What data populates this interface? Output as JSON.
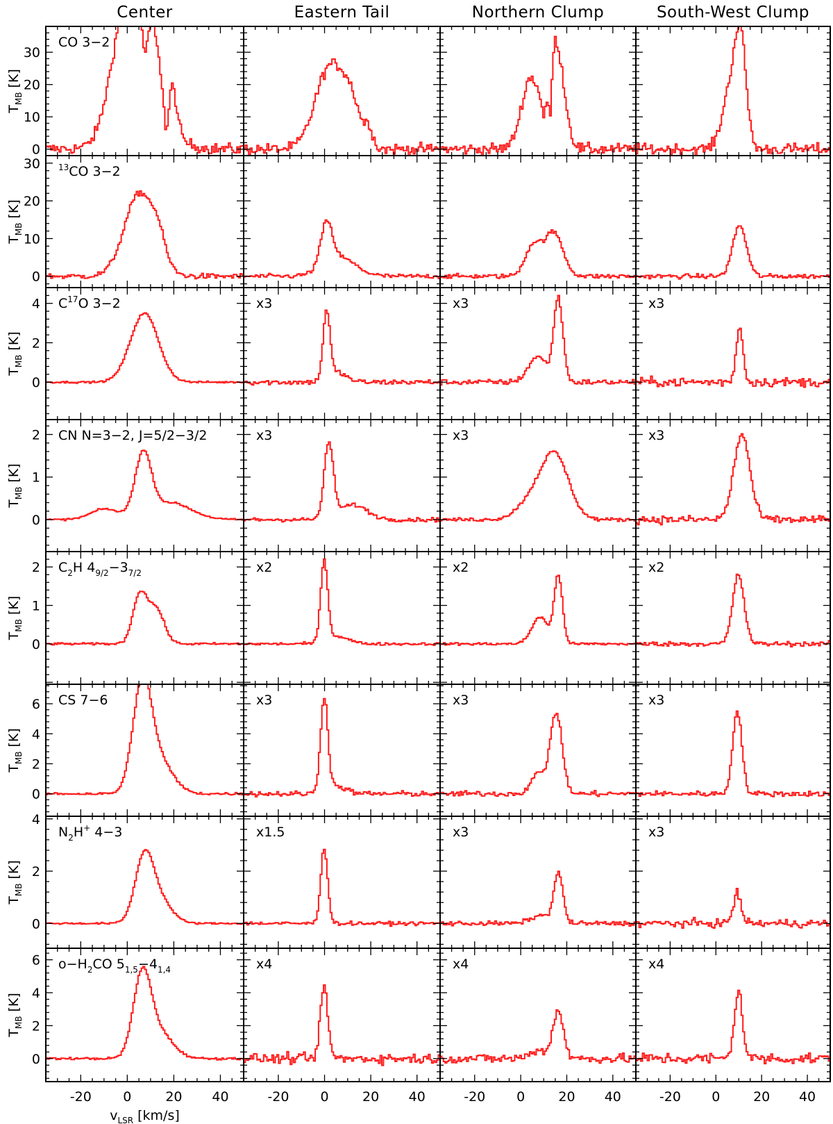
{
  "chart_data": {
    "type": "line",
    "subtype": "stepped spectra grid",
    "columns": [
      "Center",
      "Eastern Tail",
      "Northern Clump",
      "South-West Clump"
    ],
    "xlabel": "v_LSR [km/s]",
    "xlabel_main": "v",
    "xlabel_sub": "LSR",
    "xlabel_rest": " [km/s]",
    "ylabel_main": "T",
    "ylabel_sub": "MB",
    "ylabel_rest": " [K]",
    "xlim": [
      -35,
      50
    ],
    "xticks_labeled": [
      -20,
      0,
      20,
      40
    ],
    "xticks_minor_step": 5,
    "line_color": "#ff1a1a",
    "rows": [
      {
        "label": {
          "main": "CO 3−2"
        },
        "ylim": [
          -2,
          38
        ],
        "yticks": [
          0,
          10,
          20,
          30
        ],
        "scales": [
          "",
          "",
          "",
          ""
        ],
        "spectra": [
          {
            "peaks": [
              [
                0.5,
                36,
                6.5
              ],
              [
                -5,
                6,
                5
              ],
              [
                11,
                21,
                3
              ],
              [
                19,
                14,
                2
              ],
              [
                8,
                8,
                10
              ]
            ],
            "dips": [
              [
                7.5,
                10,
                1
              ],
              [
                16.5,
                12,
                1
              ]
            ],
            "noise": 0.25,
            "wings": 12
          },
          {
            "peaks": [
              [
                1.5,
                24.5,
                6
              ],
              [
                11,
                13,
                4.5
              ],
              [
                19,
                5,
                1.5
              ]
            ],
            "dips": [],
            "noise": 0.25,
            "wings": 0
          },
          {
            "peaks": [
              [
                4,
                22,
                4
              ],
              [
                13.5,
                24,
                3
              ],
              [
                17,
                15,
                3
              ]
            ],
            "dips": [
              [
                10,
                10,
                1
              ],
              [
                12.5,
                18,
                0.8
              ]
            ],
            "noise": 0.25,
            "wings": 0
          },
          {
            "peaks": [
              [
                6,
                18,
                3.5
              ],
              [
                10.5,
                30,
                2.5
              ]
            ],
            "dips": [],
            "noise": 0.25,
            "wings": 0
          }
        ]
      },
      {
        "label": {
          "main": "CO 3−2",
          "sup": "13"
        },
        "ylim": [
          -3,
          32
        ],
        "yticks": [
          0,
          10,
          20,
          30
        ],
        "scales": [
          "",
          "",
          "",
          ""
        ],
        "spectra": [
          {
            "peaks": [
              [
                5,
                22,
                6.5
              ],
              [
                13,
                5,
                3
              ]
            ],
            "dips": [],
            "noise": 0.12,
            "wings": 0
          },
          {
            "peaks": [
              [
                0.5,
                11,
                2.5
              ],
              [
                6,
                5,
                7
              ]
            ],
            "dips": [],
            "noise": 0.1,
            "wings": 0
          },
          {
            "peaks": [
              [
                5,
                8,
                3.5
              ],
              [
                14,
                11.5,
                4
              ]
            ],
            "dips": [],
            "noise": 0.1,
            "wings": 0
          },
          {
            "peaks": [
              [
                10,
                13.5,
                3
              ]
            ],
            "dips": [],
            "noise": 0.1,
            "wings": 0
          }
        ]
      },
      {
        "label": {
          "main": "C",
          "sup": "17",
          "rest": "O 3−2"
        },
        "ylim": [
          -1.9,
          4.8
        ],
        "yticks": [
          0,
          2,
          4
        ],
        "scales": [
          "",
          "x3",
          "x3",
          "x3"
        ],
        "spectra": [
          {
            "peaks": [
              [
                7,
                3.5,
                6
              ]
            ],
            "dips": [],
            "noise": 0.04,
            "wings": 0
          },
          {
            "peaks": [
              [
                0.5,
                3.4,
                1.5
              ],
              [
                5,
                0.5,
                4
              ]
            ],
            "dips": [],
            "noise": 0.12,
            "wings": 0
          },
          {
            "peaks": [
              [
                7,
                1.3,
                4
              ],
              [
                16,
                4.2,
                2
              ]
            ],
            "dips": [],
            "noise": 0.12,
            "wings": 0
          },
          {
            "peaks": [
              [
                10,
                2.8,
                1.5
              ]
            ],
            "dips": [],
            "noise": 0.2,
            "wings": 0
          }
        ]
      },
      {
        "label": {
          "main": "CN N=3−2, J=5/2−3/2"
        },
        "ylim": [
          -0.75,
          2.35
        ],
        "yticks": [
          0,
          1,
          2
        ],
        "scales": [
          "",
          "x3",
          "x3",
          "x3"
        ],
        "spectra": [
          {
            "peaks": [
              [
                6.5,
                1.45,
                3.5
              ],
              [
                -10,
                0.25,
                6
              ],
              [
                18,
                0.4,
                9
              ]
            ],
            "dips": [],
            "noise": 0.04,
            "wings": 0
          },
          {
            "peaks": [
              [
                1.5,
                1.75,
                2
              ],
              [
                12,
                0.35,
                6
              ]
            ],
            "dips": [],
            "noise": 0.09,
            "wings": 0
          },
          {
            "peaks": [
              [
                14.5,
                1.5,
                6
              ],
              [
                4,
                0.4,
                6
              ]
            ],
            "dips": [],
            "noise": 0.08,
            "wings": 0
          },
          {
            "peaks": [
              [
                11,
                2.0,
                3.5
              ]
            ],
            "dips": [],
            "noise": 0.18,
            "wings": 0
          }
        ]
      },
      {
        "label": {
          "main": "C",
          "sub": "2",
          "rest": "H 4",
          "sub2": "9/2",
          "rest2": "−3",
          "sub3": "7/2"
        },
        "ylim": [
          -1.05,
          2.4
        ],
        "yticks": [
          0,
          1,
          2
        ],
        "scales": [
          "",
          "x2",
          "x2",
          "x2"
        ],
        "spectra": [
          {
            "peaks": [
              [
                5,
                1.25,
                3
              ],
              [
                12,
                0.9,
                3.5
              ]
            ],
            "dips": [],
            "noise": 0.05,
            "wings": 0
          },
          {
            "peaks": [
              [
                -0.5,
                2.1,
                1.5
              ],
              [
                5,
                0.2,
                5
              ]
            ],
            "dips": [],
            "noise": 0.06,
            "wings": 0
          },
          {
            "peaks": [
              [
                8,
                0.7,
                3.5
              ],
              [
                16,
                1.75,
                1.8
              ]
            ],
            "dips": [],
            "noise": 0.06,
            "wings": 0
          },
          {
            "peaks": [
              [
                9.5,
                1.8,
                2.5
              ]
            ],
            "dips": [],
            "noise": 0.1,
            "wings": 0
          }
        ]
      },
      {
        "label": {
          "main": "CS 7−6"
        },
        "ylim": [
          -1.5,
          7.3
        ],
        "yticks": [
          0,
          2,
          4,
          6
        ],
        "scales": [
          "",
          "x3",
          "x3",
          "x3"
        ],
        "spectra": [
          {
            "peaks": [
              [
                6,
                6.8,
                4
              ],
              [
                13,
                2.2,
                6
              ]
            ],
            "dips": [],
            "noise": 0.06,
            "wings": 0
          },
          {
            "peaks": [
              [
                -0.5,
                6.3,
                1.6
              ],
              [
                5,
                0.5,
                4
              ]
            ],
            "dips": [],
            "noise": 0.12,
            "wings": 0
          },
          {
            "peaks": [
              [
                7,
                1.3,
                3
              ],
              [
                15,
                5.4,
                2.6
              ]
            ],
            "dips": [],
            "noise": 0.12,
            "wings": 0
          },
          {
            "peaks": [
              [
                9,
                5.6,
                2
              ]
            ],
            "dips": [],
            "noise": 0.12,
            "wings": 0
          }
        ]
      },
      {
        "label": {
          "main": "N",
          "sub": "2",
          "rest": "H",
          "sup": "+",
          "rest2": " 4−3"
        },
        "ylim": [
          -0.95,
          4.1
        ],
        "yticks": [
          0,
          2,
          4
        ],
        "scales": [
          "",
          "x1.5",
          "x3",
          "x3"
        ],
        "spectra": [
          {
            "peaks": [
              [
                7,
                2.5,
                4
              ],
              [
                14,
                0.8,
                5
              ]
            ],
            "dips": [],
            "noise": 0.04,
            "wings": 0
          },
          {
            "peaks": [
              [
                -0.5,
                2.9,
                1.5
              ]
            ],
            "dips": [],
            "noise": 0.08,
            "wings": 0
          },
          {
            "peaks": [
              [
                16,
                1.9,
                2
              ],
              [
                8,
                0.3,
                4
              ]
            ],
            "dips": [],
            "noise": 0.1,
            "wings": 0
          },
          {
            "peaks": [
              [
                9,
                1.1,
                1.8
              ]
            ],
            "dips": [],
            "noise": 0.18,
            "wings": 0
          }
        ]
      },
      {
        "label": {
          "main": "o−H",
          "sub": "2",
          "rest": "CO 5",
          "sub2": "1,5",
          "rest2": "−4",
          "sub3": "1,4"
        },
        "ylim": [
          -1.4,
          6.7
        ],
        "yticks": [
          0,
          2,
          4,
          6
        ],
        "scales": [
          "",
          "x4",
          "x4",
          "x4"
        ],
        "spectra": [
          {
            "peaks": [
              [
                6,
                4.7,
                3.8
              ],
              [
                13,
                1.6,
                6
              ]
            ],
            "dips": [],
            "noise": 0.05,
            "wings": 0
          },
          {
            "peaks": [
              [
                -0.5,
                4.4,
                1.6
              ]
            ],
            "dips": [],
            "noise": 0.22,
            "wings": 0
          },
          {
            "peaks": [
              [
                16,
                2.9,
                2.2
              ],
              [
                8,
                0.5,
                4
              ]
            ],
            "dips": [],
            "noise": 0.2,
            "wings": 0
          },
          {
            "peaks": [
              [
                9.5,
                4.1,
                1.8
              ]
            ],
            "dips": [],
            "noise": 0.25,
            "wings": 0
          }
        ]
      }
    ]
  }
}
